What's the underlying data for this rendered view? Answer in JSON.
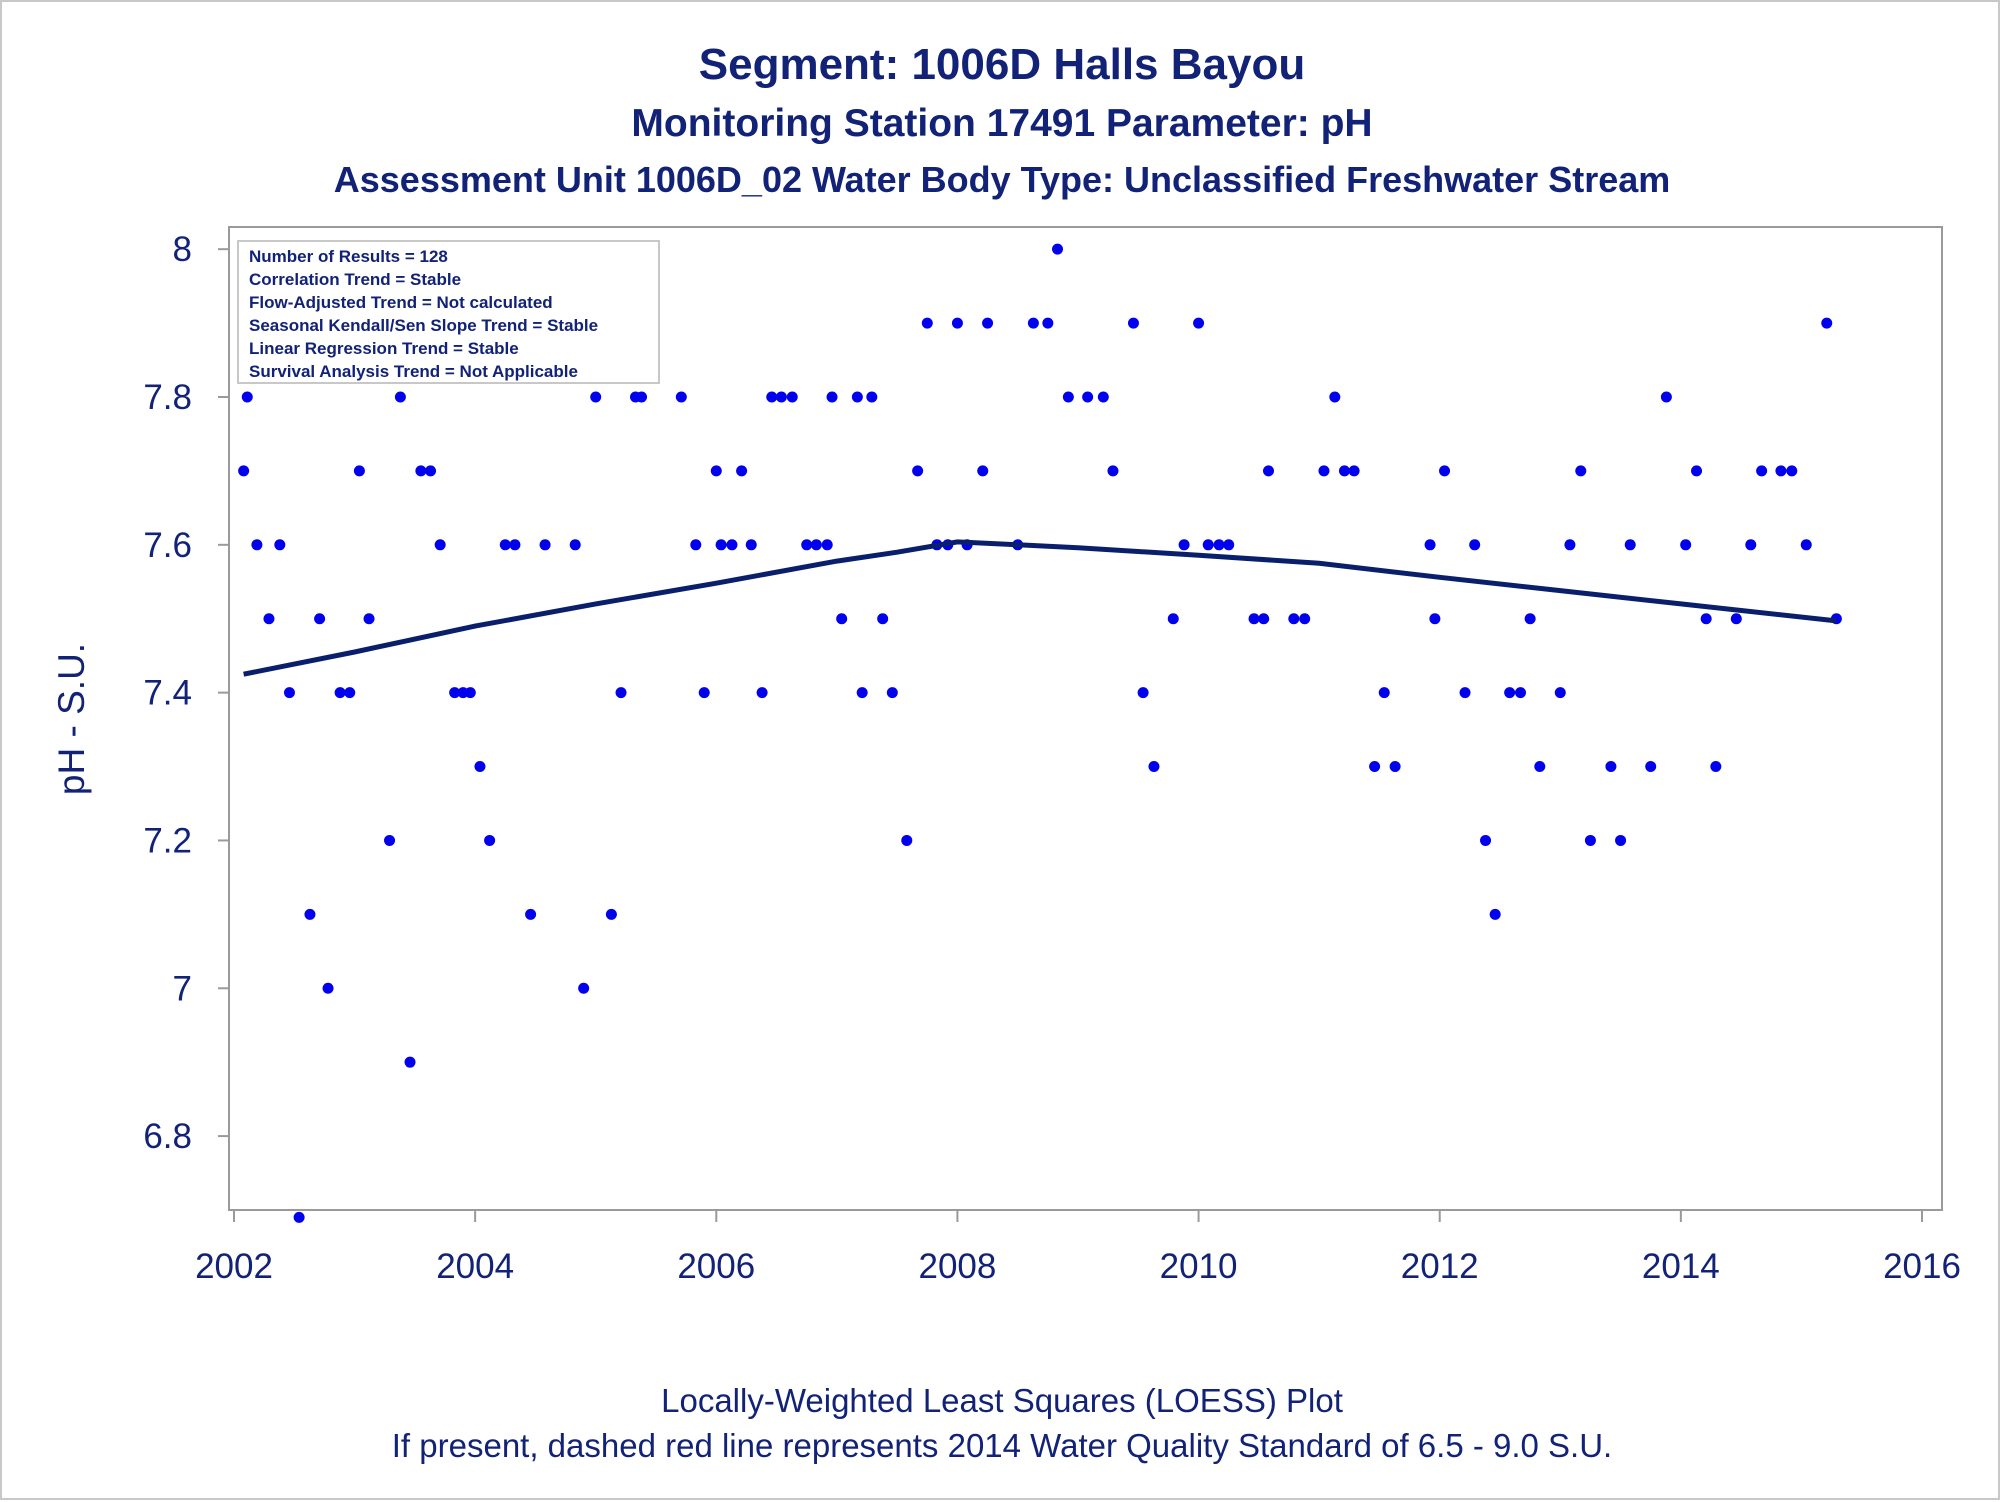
{
  "header": {
    "title": "Segment: 1006D  Halls Bayou",
    "subtitle": "Monitoring Station 17491 Parameter: pH",
    "subtitle2": "Assessment Unit 1006D_02   Water Body Type: Unclassified Freshwater Stream"
  },
  "footer": {
    "line1": "Locally-Weighted Least Squares (LOESS) Plot",
    "line2": "If present, dashed red line represents 2014 Water Quality Standard of 6.5 - 9.0 S.U."
  },
  "inset": {
    "lines": [
      "Number of Results = 128",
      "Correlation Trend = Stable",
      "Flow-Adjusted Trend = Not calculated",
      "Seasonal Kendall/Sen Slope Trend = Stable",
      "Linear Regression Trend = Stable",
      "Survival Analysis Trend = Not Applicable"
    ]
  },
  "colors": {
    "text": "#112277",
    "points": "#0000ee",
    "loess": "#0a1f6b",
    "axis": "#9a9a9a"
  },
  "chart_data": {
    "type": "scatter",
    "ylabel": "pH - S.U.",
    "xlabel": "",
    "xlim": [
      2002,
      2016
    ],
    "ylim": [
      6.7,
      8.03
    ],
    "xticks": [
      "2002",
      "2004",
      "2006",
      "2008",
      "2010",
      "2012",
      "2014",
      "2016"
    ],
    "yticks": [
      "6.8",
      "7",
      "7.2",
      "7.4",
      "7.6",
      "7.8",
      "8"
    ],
    "grid": false,
    "series": [
      {
        "type": "scatter",
        "points": [
          [
            2002.08,
            7.7
          ],
          [
            2002.11,
            7.8
          ],
          [
            2002.19,
            7.6
          ],
          [
            2002.29,
            7.5
          ],
          [
            2002.38,
            7.6
          ],
          [
            2002.46,
            7.4
          ],
          [
            2002.54,
            6.69
          ],
          [
            2002.63,
            7.1
          ],
          [
            2002.71,
            7.5
          ],
          [
            2002.78,
            7.0
          ],
          [
            2002.88,
            7.4
          ],
          [
            2002.96,
            7.4
          ],
          [
            2003.04,
            7.7
          ],
          [
            2003.12,
            7.5
          ],
          [
            2003.29,
            7.2
          ],
          [
            2003.38,
            7.8
          ],
          [
            2003.46,
            6.9
          ],
          [
            2003.55,
            7.7
          ],
          [
            2003.63,
            7.7
          ],
          [
            2003.71,
            7.6
          ],
          [
            2003.83,
            7.4
          ],
          [
            2003.9,
            7.4
          ],
          [
            2003.96,
            7.4
          ],
          [
            2004.04,
            7.3
          ],
          [
            2004.12,
            7.2
          ],
          [
            2004.25,
            7.6
          ],
          [
            2004.33,
            7.6
          ],
          [
            2004.46,
            7.1
          ],
          [
            2004.58,
            7.6
          ],
          [
            2004.83,
            7.6
          ],
          [
            2004.9,
            7.0
          ],
          [
            2005.0,
            7.8
          ],
          [
            2005.13,
            7.1
          ],
          [
            2005.21,
            7.4
          ],
          [
            2005.33,
            7.8
          ],
          [
            2005.38,
            7.8
          ],
          [
            2005.71,
            7.8
          ],
          [
            2005.83,
            7.6
          ],
          [
            2005.9,
            7.4
          ],
          [
            2006.0,
            7.7
          ],
          [
            2006.04,
            7.6
          ],
          [
            2006.13,
            7.6
          ],
          [
            2006.21,
            7.7
          ],
          [
            2006.29,
            7.6
          ],
          [
            2006.38,
            7.4
          ],
          [
            2006.46,
            7.8
          ],
          [
            2006.54,
            7.8
          ],
          [
            2006.63,
            7.8
          ],
          [
            2006.75,
            7.6
          ],
          [
            2006.83,
            7.6
          ],
          [
            2006.92,
            7.6
          ],
          [
            2006.96,
            7.8
          ],
          [
            2007.04,
            7.5
          ],
          [
            2007.17,
            7.8
          ],
          [
            2007.21,
            7.4
          ],
          [
            2007.29,
            7.8
          ],
          [
            2007.38,
            7.5
          ],
          [
            2007.46,
            7.4
          ],
          [
            2007.58,
            7.2
          ],
          [
            2007.67,
            7.7
          ],
          [
            2007.75,
            7.9
          ],
          [
            2007.83,
            7.6
          ],
          [
            2007.92,
            7.6
          ],
          [
            2008.0,
            7.9
          ],
          [
            2008.08,
            7.6
          ],
          [
            2008.21,
            7.7
          ],
          [
            2008.25,
            7.9
          ],
          [
            2008.5,
            7.6
          ],
          [
            2008.63,
            7.9
          ],
          [
            2008.75,
            7.9
          ],
          [
            2008.83,
            8.0
          ],
          [
            2008.92,
            7.8
          ],
          [
            2009.08,
            7.8
          ],
          [
            2009.21,
            7.8
          ],
          [
            2009.29,
            7.7
          ],
          [
            2009.46,
            7.9
          ],
          [
            2009.54,
            7.4
          ],
          [
            2009.63,
            7.3
          ],
          [
            2009.79,
            7.5
          ],
          [
            2009.88,
            7.6
          ],
          [
            2010.0,
            7.9
          ],
          [
            2010.08,
            7.6
          ],
          [
            2010.17,
            7.6
          ],
          [
            2010.25,
            7.6
          ],
          [
            2010.46,
            7.5
          ],
          [
            2010.54,
            7.5
          ],
          [
            2010.58,
            7.7
          ],
          [
            2010.79,
            7.5
          ],
          [
            2010.88,
            7.5
          ],
          [
            2011.04,
            7.7
          ],
          [
            2011.13,
            7.8
          ],
          [
            2011.21,
            7.7
          ],
          [
            2011.29,
            7.7
          ],
          [
            2011.46,
            7.3
          ],
          [
            2011.54,
            7.4
          ],
          [
            2011.63,
            7.3
          ],
          [
            2011.92,
            7.6
          ],
          [
            2011.96,
            7.5
          ],
          [
            2012.04,
            7.7
          ],
          [
            2012.21,
            7.4
          ],
          [
            2012.29,
            7.6
          ],
          [
            2012.38,
            7.2
          ],
          [
            2012.46,
            7.1
          ],
          [
            2012.58,
            7.4
          ],
          [
            2012.67,
            7.4
          ],
          [
            2012.75,
            7.5
          ],
          [
            2012.83,
            7.3
          ],
          [
            2013.0,
            7.4
          ],
          [
            2013.08,
            7.6
          ],
          [
            2013.17,
            7.7
          ],
          [
            2013.25,
            7.2
          ],
          [
            2013.42,
            7.3
          ],
          [
            2013.5,
            7.2
          ],
          [
            2013.58,
            7.6
          ],
          [
            2013.75,
            7.3
          ],
          [
            2013.88,
            7.8
          ],
          [
            2014.04,
            7.6
          ],
          [
            2014.13,
            7.7
          ],
          [
            2014.21,
            7.5
          ],
          [
            2014.29,
            7.3
          ],
          [
            2014.46,
            7.5
          ],
          [
            2014.58,
            7.6
          ],
          [
            2014.67,
            7.7
          ],
          [
            2014.83,
            7.7
          ],
          [
            2014.92,
            7.7
          ],
          [
            2015.04,
            7.6
          ],
          [
            2015.21,
            7.9
          ],
          [
            2015.29,
            7.5
          ]
        ]
      },
      {
        "type": "line",
        "points": [
          [
            2002.08,
            7.425
          ],
          [
            2003.0,
            7.455
          ],
          [
            2004.0,
            7.49
          ],
          [
            2005.0,
            7.52
          ],
          [
            2006.0,
            7.548
          ],
          [
            2007.0,
            7.578
          ],
          [
            2007.5,
            7.59
          ],
          [
            2008.0,
            7.604
          ],
          [
            2008.5,
            7.6
          ],
          [
            2009.0,
            7.596
          ],
          [
            2010.0,
            7.586
          ],
          [
            2011.0,
            7.575
          ],
          [
            2012.0,
            7.556
          ],
          [
            2013.0,
            7.538
          ],
          [
            2014.0,
            7.52
          ],
          [
            2015.29,
            7.497
          ]
        ]
      }
    ]
  }
}
